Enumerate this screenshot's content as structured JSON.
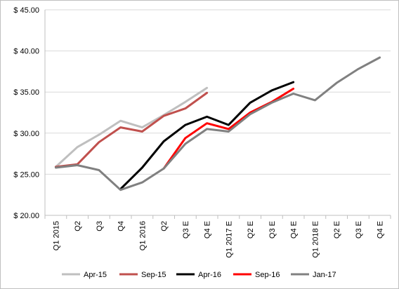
{
  "chart_data": {
    "type": "line",
    "x": [
      "Q1 2015",
      "Q2",
      "Q3",
      "Q4",
      "Q1 2016",
      "Q2",
      "Q3 E",
      "Q4 E",
      "Q1 2017 E",
      "Q2 E",
      "Q3 E",
      "Q4 E",
      "Q1 2018 E",
      "Q2 E",
      "Q3 E",
      "Q4 E"
    ],
    "y_ticks": [
      "$ 20.00",
      "$ 25.00",
      "$ 30.00",
      "$ 35.00",
      "$ 40.00",
      "$ 45.00"
    ],
    "ylim": [
      20,
      45
    ],
    "grid": "horizontal",
    "legend_position": "bottom",
    "series": [
      {
        "name": "Apr-15",
        "color": "#bfbfbf",
        "values": [
          25.9,
          28.3,
          29.8,
          31.5,
          30.7,
          32.2,
          33.8,
          35.5,
          null,
          null,
          null,
          null,
          null,
          null,
          null,
          null
        ]
      },
      {
        "name": "Sep-15",
        "color": "#c0504d",
        "values": [
          25.9,
          26.2,
          28.9,
          30.7,
          30.2,
          32.1,
          33.0,
          34.9,
          null,
          null,
          null,
          null,
          null,
          null,
          null,
          null
        ]
      },
      {
        "name": "Apr-16",
        "color": "#000000",
        "values": [
          null,
          null,
          null,
          23.2,
          25.8,
          29.0,
          31.0,
          32.0,
          31.0,
          33.7,
          35.2,
          36.2,
          null,
          null,
          null,
          null
        ]
      },
      {
        "name": "Sep-16",
        "color": "#ff0000",
        "values": [
          null,
          null,
          null,
          null,
          null,
          25.7,
          29.4,
          31.2,
          30.5,
          32.5,
          33.8,
          35.4,
          null,
          null,
          null,
          null
        ]
      },
      {
        "name": "Jan-17",
        "color": "#808080",
        "values": [
          25.8,
          26.1,
          25.5,
          23.1,
          24.0,
          25.7,
          28.7,
          30.5,
          30.2,
          32.3,
          33.7,
          34.8,
          34.0,
          36.1,
          37.8,
          39.2
        ]
      }
    ]
  }
}
